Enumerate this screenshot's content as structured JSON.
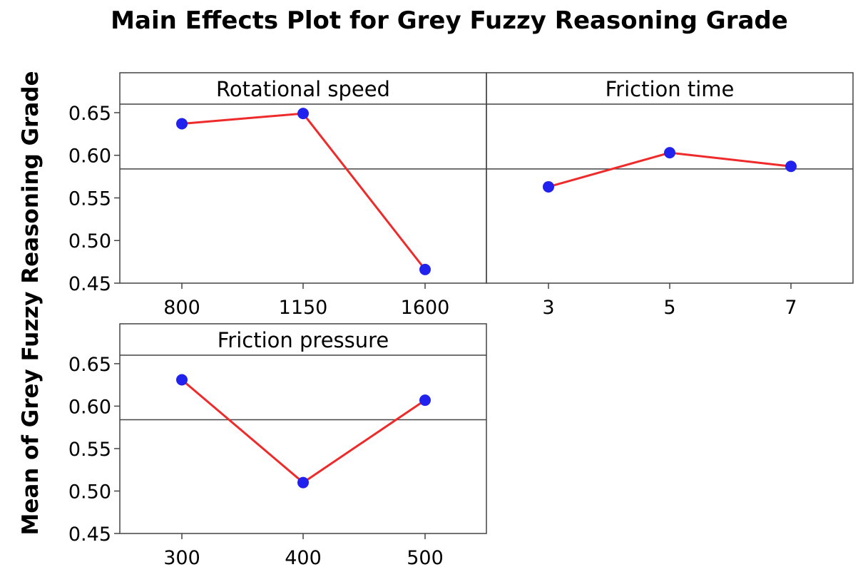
{
  "chart_data": {
    "type": "line",
    "title": "Main Effects Plot for Grey Fuzzy Reasoning Grade",
    "ylabel": "Mean of Grey Fuzzy Reasoning Grade",
    "ylim": [
      0.45,
      0.66
    ],
    "yticks": [
      "0.45",
      "0.50",
      "0.55",
      "0.60",
      "0.65"
    ],
    "grand_mean": 0.584,
    "colors": {
      "line": "#ee2a2a",
      "marker": "#2222ee",
      "axis": "#444444"
    },
    "panels": [
      {
        "factor": "Rotational speed",
        "categories": [
          "800",
          "1150",
          "1600"
        ],
        "values": [
          0.637,
          0.649,
          0.466
        ]
      },
      {
        "factor": "Friction time",
        "categories": [
          "3",
          "5",
          "7"
        ],
        "values": [
          0.563,
          0.603,
          0.587
        ]
      },
      {
        "factor": "Friction pressure",
        "categories": [
          "300",
          "400",
          "500"
        ],
        "values": [
          0.631,
          0.51,
          0.607
        ]
      }
    ]
  }
}
